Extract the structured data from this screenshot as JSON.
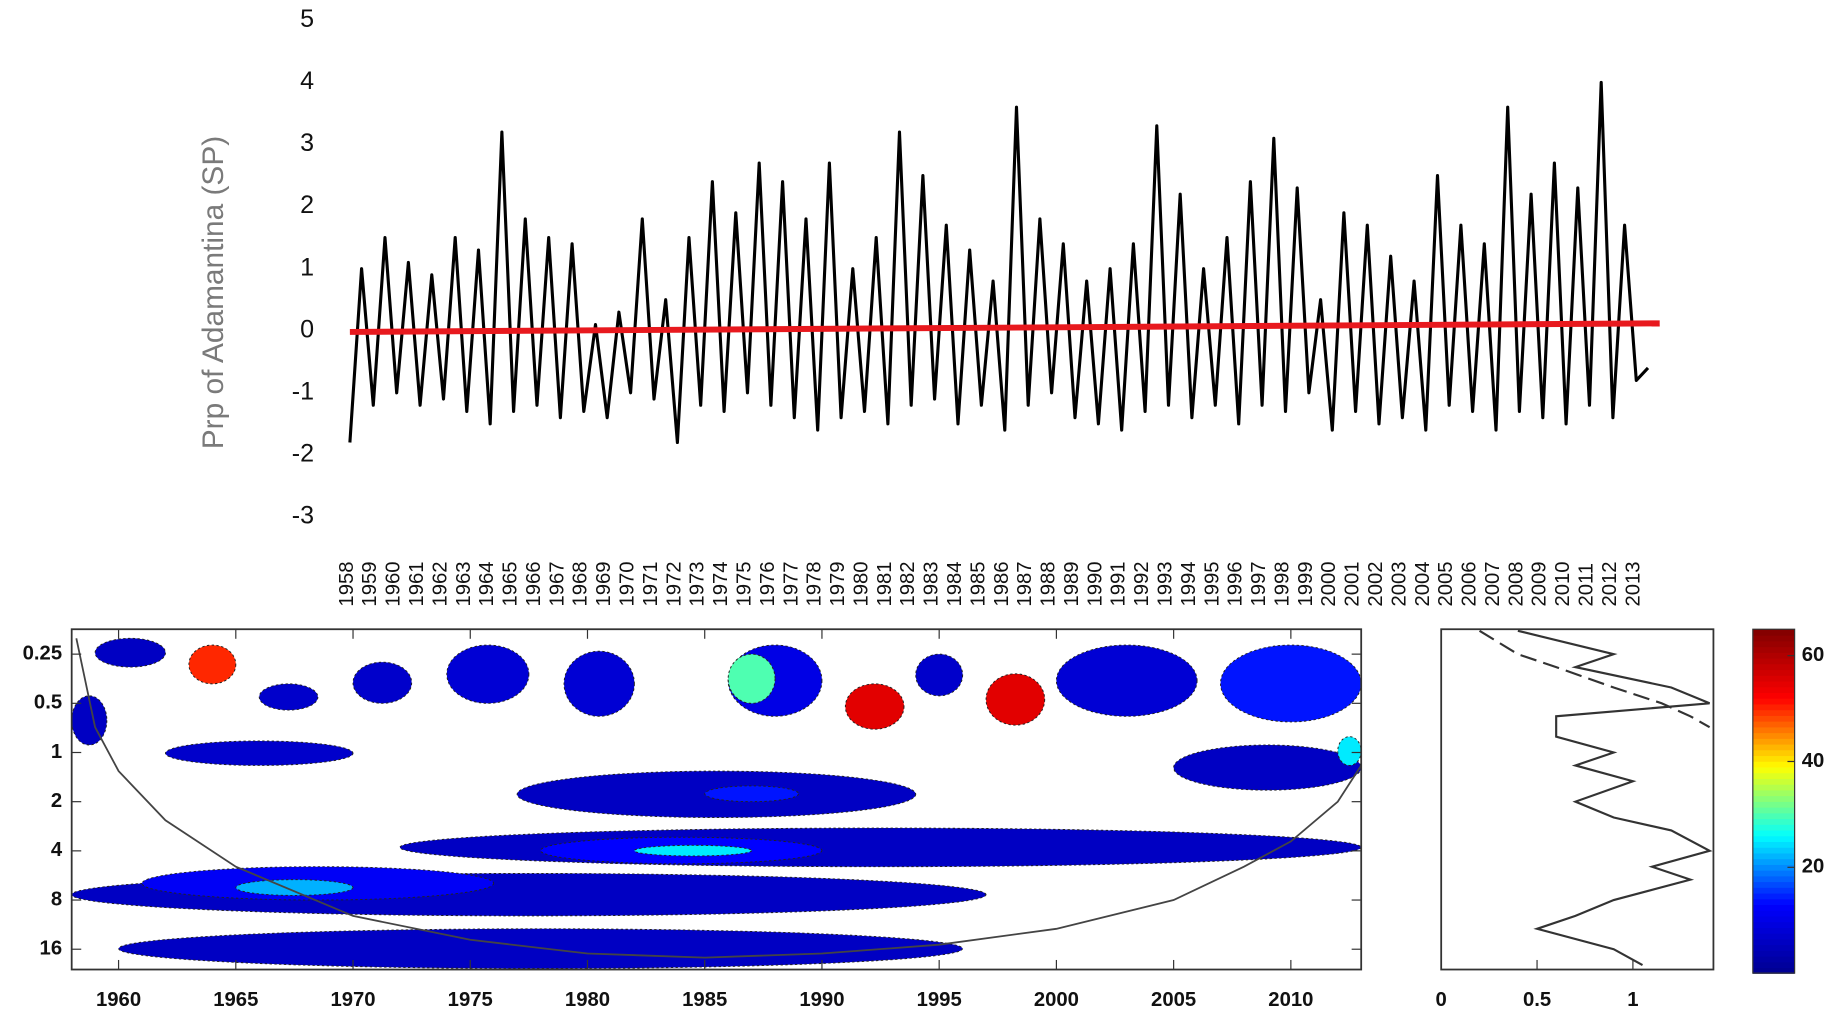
{
  "chart_data": [
    {
      "type": "line",
      "ylabel": "Prp of Adamantina (SP)",
      "ylim": [
        -3,
        5
      ],
      "yticks": [
        -3,
        -2,
        -1,
        0,
        1,
        2,
        3,
        4,
        5
      ],
      "xlim": [
        1958,
        2014
      ],
      "xticks": [
        1958,
        1959,
        1960,
        1961,
        1962,
        1963,
        1964,
        1965,
        1966,
        1967,
        1968,
        1969,
        1970,
        1971,
        1972,
        1973,
        1974,
        1975,
        1976,
        1977,
        1978,
        1979,
        1980,
        1981,
        1982,
        1983,
        1984,
        1985,
        1986,
        1987,
        1988,
        1989,
        1990,
        1991,
        1992,
        1993,
        1994,
        1995,
        1996,
        1997,
        1998,
        1999,
        2000,
        2001,
        2002,
        2003,
        2004,
        2005,
        2006,
        2007,
        2008,
        2009,
        2010,
        2011,
        2012,
        2013
      ],
      "series": [
        {
          "color": "#000000",
          "x": [
            1958,
            1958.5,
            1959,
            1959.5,
            1960,
            1960.5,
            1961,
            1961.5,
            1962,
            1962.5,
            1963,
            1963.5,
            1964,
            1964.5,
            1965,
            1965.5,
            1966,
            1966.5,
            1967,
            1967.5,
            1968,
            1968.5,
            1969,
            1969.5,
            1970,
            1970.5,
            1971,
            1971.5,
            1972,
            1972.5,
            1973,
            1973.5,
            1974,
            1974.5,
            1975,
            1975.5,
            1976,
            1976.5,
            1977,
            1977.5,
            1978,
            1978.5,
            1979,
            1979.5,
            1980,
            1980.5,
            1981,
            1981.5,
            1982,
            1982.5,
            1983,
            1983.5,
            1984,
            1984.5,
            1985,
            1985.5,
            1986,
            1986.5,
            1987,
            1987.5,
            1988,
            1988.5,
            1989,
            1989.5,
            1990,
            1990.5,
            1991,
            1991.5,
            1992,
            1992.5,
            1993,
            1993.5,
            1994,
            1994.5,
            1995,
            1995.5,
            1996,
            1996.5,
            1997,
            1997.5,
            1998,
            1998.5,
            1999,
            1999.5,
            2000,
            2000.5,
            2001,
            2001.5,
            2002,
            2002.5,
            2003,
            2003.5,
            2004,
            2004.5,
            2005,
            2005.5,
            2006,
            2006.5,
            2007,
            2007.5,
            2008,
            2008.5,
            2009,
            2009.5,
            2010,
            2010.5,
            2011,
            2011.5,
            2012,
            2012.5,
            2013,
            2013.5
          ],
          "values": [
            -1.8,
            1.0,
            -1.2,
            1.5,
            -1.0,
            1.1,
            -1.2,
            0.9,
            -1.1,
            1.5,
            -1.3,
            1.3,
            -1.5,
            3.2,
            -1.3,
            1.8,
            -1.2,
            1.5,
            -1.4,
            1.4,
            -1.3,
            0.1,
            -1.4,
            0.3,
            -1.0,
            1.8,
            -1.1,
            0.5,
            -1.8,
            1.5,
            -1.2,
            2.4,
            -1.3,
            1.9,
            -1.0,
            2.7,
            -1.2,
            2.4,
            -1.4,
            1.8,
            -1.6,
            2.7,
            -1.4,
            1.0,
            -1.3,
            1.5,
            -1.5,
            3.2,
            -1.2,
            2.5,
            -1.1,
            1.7,
            -1.5,
            1.3,
            -1.2,
            0.8,
            -1.6,
            3.6,
            -1.2,
            1.8,
            -1.0,
            1.4,
            -1.4,
            0.8,
            -1.5,
            1.0,
            -1.6,
            1.4,
            -1.3,
            3.3,
            -1.2,
            2.2,
            -1.4,
            1.0,
            -1.2,
            1.5,
            -1.5,
            2.4,
            -1.2,
            3.1,
            -1.3,
            2.3,
            -1.0,
            0.5,
            -1.6,
            1.9,
            -1.3,
            1.7,
            -1.5,
            1.2,
            -1.4,
            0.8,
            -1.6,
            2.5,
            -1.2,
            1.7,
            -1.3,
            1.4,
            -1.6,
            3.6,
            -1.3,
            2.2,
            -1.4,
            2.7,
            -1.5,
            2.3,
            -1.2,
            4.0,
            -1.4,
            1.7,
            -0.8,
            -0.6
          ]
        },
        {
          "color": "#e8191e",
          "x": [
            1958,
            2014
          ],
          "values": [
            -0.02,
            0.12
          ]
        }
      ]
    },
    {
      "type": "wavelet",
      "xlim": [
        1958,
        2013
      ],
      "xticks": [
        1960,
        1965,
        1970,
        1975,
        1980,
        1985,
        1990,
        1995,
        2000,
        2005,
        2010
      ],
      "yscale": "log",
      "y_reversed": true,
      "ylim": [
        0.176,
        21.3
      ],
      "yticks": [
        0.25,
        0.5,
        1,
        2,
        4,
        8,
        16
      ],
      "colormap": [
        "#00008f",
        "#0000ff",
        "#00ffff",
        "#ffff00",
        "#ff0000",
        "#800000"
      ],
      "colorbar": {
        "lim": [
          0,
          65
        ],
        "ticks": [
          20,
          40,
          60
        ]
      },
      "regions": [
        {
          "x0": 1958,
          "x1": 1997,
          "p0": 5.5,
          "p1": 10,
          "power": 6
        },
        {
          "x0": 1960,
          "x1": 1996,
          "p0": 12,
          "p1": 21,
          "power": 6
        },
        {
          "x0": 1961,
          "x1": 1976,
          "p0": 5,
          "p1": 8,
          "power": 12
        },
        {
          "x0": 1965,
          "x1": 1970,
          "p0": 6,
          "p1": 7.5,
          "power": 22
        },
        {
          "x0": 1972,
          "x1": 2013,
          "p0": 2.9,
          "p1": 5,
          "power": 6
        },
        {
          "x0": 1978,
          "x1": 1990,
          "p0": 3.3,
          "p1": 4.8,
          "power": 13
        },
        {
          "x0": 1982,
          "x1": 1987,
          "p0": 3.7,
          "p1": 4.3,
          "power": 25
        },
        {
          "x0": 1977,
          "x1": 1994,
          "p0": 1.3,
          "p1": 2.5,
          "power": 6
        },
        {
          "x0": 1985,
          "x1": 1989,
          "p0": 1.6,
          "p1": 2,
          "power": 14
        },
        {
          "x0": 1962,
          "x1": 1970,
          "p0": 0.85,
          "p1": 1.2,
          "power": 7
        },
        {
          "x0": 2005,
          "x1": 2013,
          "p0": 0.9,
          "p1": 1.7,
          "power": 6
        },
        {
          "x0": 2012,
          "x1": 2013,
          "p0": 0.8,
          "p1": 1.2,
          "power": 25
        },
        {
          "x0": 1958,
          "x1": 1959.5,
          "p0": 0.45,
          "p1": 0.9,
          "power": 6
        },
        {
          "x0": 1959,
          "x1": 1962,
          "p0": 0.2,
          "p1": 0.3,
          "power": 6
        },
        {
          "x0": 1963,
          "x1": 1965,
          "p0": 0.22,
          "p1": 0.38,
          "power": 50
        },
        {
          "x0": 1966,
          "x1": 1968.5,
          "p0": 0.38,
          "p1": 0.55,
          "power": 7
        },
        {
          "x0": 1970,
          "x1": 1972.5,
          "p0": 0.28,
          "p1": 0.5,
          "power": 7
        },
        {
          "x0": 1974,
          "x1": 1977.5,
          "p0": 0.22,
          "p1": 0.5,
          "power": 8
        },
        {
          "x0": 1979,
          "x1": 1982,
          "p0": 0.24,
          "p1": 0.6,
          "power": 8
        },
        {
          "x0": 1986,
          "x1": 1990,
          "p0": 0.22,
          "p1": 0.6,
          "power": 10
        },
        {
          "x0": 1986,
          "x1": 1988,
          "p0": 0.25,
          "p1": 0.5,
          "power": 30
        },
        {
          "x0": 1991,
          "x1": 1993.5,
          "p0": 0.38,
          "p1": 0.72,
          "power": 55
        },
        {
          "x0": 1994,
          "x1": 1996,
          "p0": 0.25,
          "p1": 0.45,
          "power": 7
        },
        {
          "x0": 1997,
          "x1": 1999.5,
          "p0": 0.33,
          "p1": 0.68,
          "power": 55
        },
        {
          "x0": 2000,
          "x1": 2006,
          "p0": 0.22,
          "p1": 0.6,
          "power": 8
        },
        {
          "x0": 2007,
          "x1": 2013,
          "p0": 0.22,
          "p1": 0.65,
          "power": 14
        }
      ],
      "coi": {
        "x": [
          1958.2,
          1959,
          1960,
          1962,
          1965,
          1970,
          1975,
          1980,
          1985,
          1990,
          1995,
          2000,
          2005,
          2008,
          2010,
          2012,
          2013
        ],
        "period": [
          0.2,
          0.7,
          1.3,
          2.6,
          5,
          10,
          14,
          17,
          18,
          17,
          15,
          12,
          8,
          5,
          3.5,
          2,
          1.2
        ]
      }
    },
    {
      "type": "spectrum",
      "xlim": [
        0,
        1.42
      ],
      "xticks": [
        0,
        0.5,
        1
      ],
      "yscale": "log",
      "y_reversed": true,
      "ylim": [
        0.176,
        21.3
      ],
      "series": [
        {
          "color": "#333333",
          "dash": false,
          "period": [
            0.18,
            0.25,
            0.3,
            0.4,
            0.5,
            0.6,
            0.8,
            1,
            1.2,
            1.5,
            2,
            2.5,
            3,
            4,
            5,
            6,
            8,
            10,
            12,
            16,
            20
          ],
          "values": [
            0.4,
            0.9,
            0.7,
            1.2,
            1.4,
            0.6,
            0.6,
            0.9,
            0.7,
            1.0,
            0.7,
            0.9,
            1.2,
            1.4,
            1.1,
            1.3,
            0.9,
            0.7,
            0.5,
            0.9,
            1.05
          ]
        },
        {
          "color": "#333333",
          "dash": true,
          "period": [
            0.18,
            0.25,
            0.3,
            0.4,
            0.5,
            0.6,
            0.7
          ],
          "values": [
            0.2,
            0.4,
            0.6,
            0.9,
            1.15,
            1.3,
            1.4
          ]
        }
      ]
    }
  ]
}
